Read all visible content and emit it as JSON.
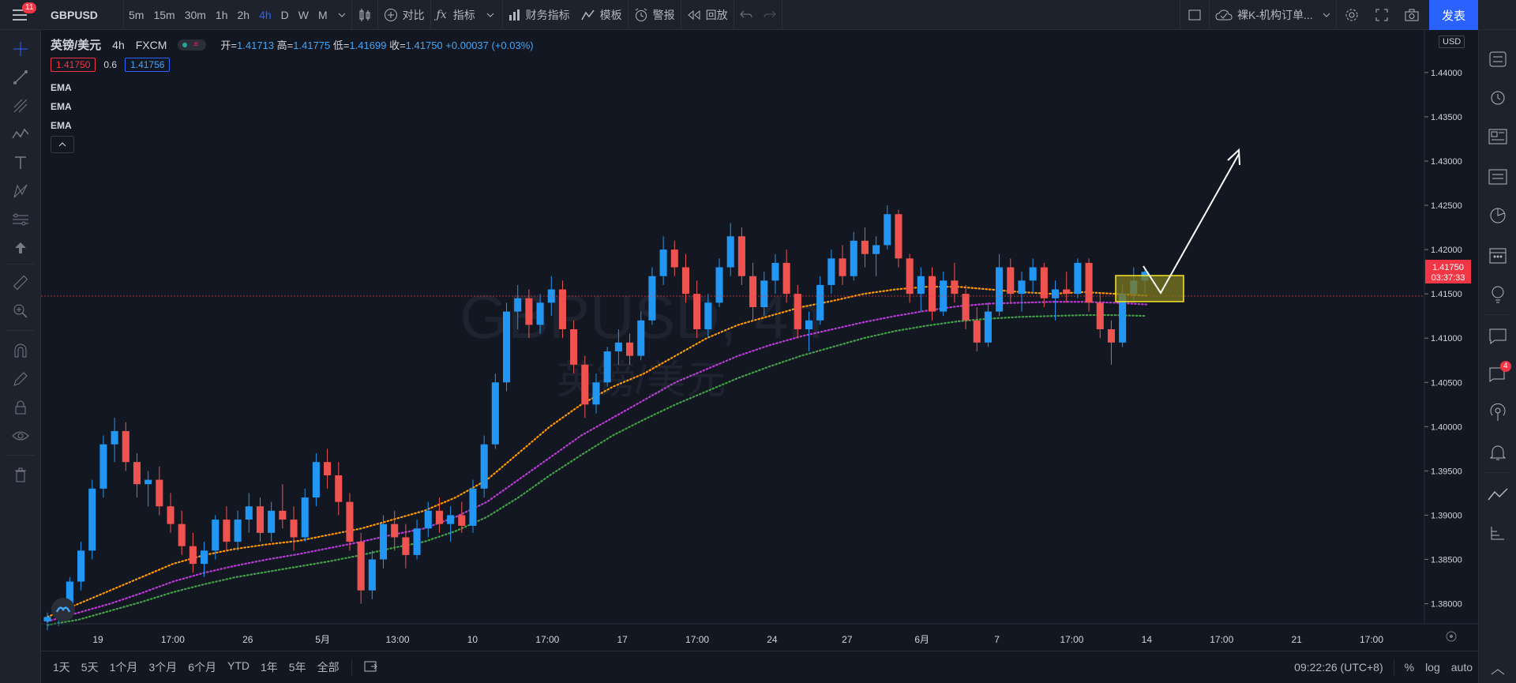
{
  "topbar": {
    "menu_badge": "11",
    "symbol": "GBPUSD",
    "intervals": [
      "5m",
      "15m",
      "30m",
      "1h",
      "2h",
      "4h",
      "D",
      "W",
      "M"
    ],
    "active_interval": "4h",
    "compare": "对比",
    "indicators": "指标",
    "financials": "财务指标",
    "templates": "模板",
    "alert": "警报",
    "replay": "回放",
    "layout_name": "裸K-机构订单...",
    "publish": "发表"
  },
  "legend": {
    "symbol_name": "英镑/美元",
    "interval": "4h",
    "exchange": "FXCM",
    "open_label": "开=",
    "open": "1.41713",
    "high_label": "高=",
    "high": "1.41775",
    "low_label": "低=",
    "low": "1.41699",
    "close_label": "收=",
    "close": "1.41750",
    "change": "+0.00037 (+0.03%)",
    "bid": "1.41750",
    "spread": "0.6",
    "ask": "1.41756",
    "indicators": [
      "EMA",
      "EMA",
      "EMA"
    ]
  },
  "watermark": {
    "symbol": "GBPUSD, 4h",
    "name": "英镑/美元"
  },
  "price_axis": {
    "currency": "USD",
    "labels": [
      "1.44000",
      "1.43500",
      "1.43000",
      "1.42500",
      "1.42000",
      "1.41500",
      "1.41000",
      "1.40500",
      "1.40000",
      "1.39500",
      "1.39000",
      "1.38500",
      "1.38000"
    ],
    "current_price": "1.41750",
    "countdown": "03:37:33"
  },
  "time_axis": {
    "labels": [
      "19",
      "17:00",
      "26",
      "5月",
      "13:00",
      "10",
      "17:00",
      "17",
      "17:00",
      "24",
      "27",
      "6月",
      "7",
      "17:00",
      "14",
      "17:00",
      "21",
      "17:00"
    ]
  },
  "bottombar": {
    "ranges": [
      "1天",
      "5天",
      "1个月",
      "3个月",
      "6个月",
      "YTD",
      "1年",
      "5年",
      "全部"
    ],
    "clock": "09:22:26 (UTC+8)",
    "percent": "%",
    "log": "log",
    "auto": "auto"
  },
  "right_panel": {
    "notifications_badge": "4"
  },
  "colors": {
    "bg": "#131722",
    "up": "#2196f3",
    "down": "#ef5350",
    "ema_fast": "#ff9800",
    "ema_mid": "#ba3bd6",
    "ema_slow": "#43a047",
    "zone_fill": "#7c7a1e",
    "zone_border": "#f5e626",
    "price_label_bg": "#f23645"
  },
  "chart_data": {
    "type": "candlestick",
    "y_range": [
      1.378,
      1.444
    ],
    "candles": [
      [
        1.378,
        1.379,
        1.377,
        1.3785
      ],
      [
        1.3785,
        1.38,
        1.3775,
        1.3795
      ],
      [
        1.3795,
        1.383,
        1.379,
        1.3825
      ],
      [
        1.3825,
        1.387,
        1.3815,
        1.386
      ],
      [
        1.386,
        1.394,
        1.385,
        1.393
      ],
      [
        1.393,
        1.399,
        1.392,
        1.398
      ],
      [
        1.398,
        1.401,
        1.396,
        1.3995
      ],
      [
        1.3995,
        1.4005,
        1.395,
        1.396
      ],
      [
        1.396,
        1.397,
        1.392,
        1.3935
      ],
      [
        1.3935,
        1.395,
        1.391,
        1.394
      ],
      [
        1.394,
        1.3955,
        1.39,
        1.391
      ],
      [
        1.391,
        1.3925,
        1.388,
        1.389
      ],
      [
        1.389,
        1.3905,
        1.3855,
        1.3865
      ],
      [
        1.3865,
        1.388,
        1.3835,
        1.3845
      ],
      [
        1.3845,
        1.387,
        1.383,
        1.386
      ],
      [
        1.386,
        1.39,
        1.385,
        1.3895
      ],
      [
        1.3895,
        1.391,
        1.386,
        1.387
      ],
      [
        1.387,
        1.3905,
        1.386,
        1.3895
      ],
      [
        1.3895,
        1.3925,
        1.388,
        1.391
      ],
      [
        1.391,
        1.392,
        1.387,
        1.388
      ],
      [
        1.388,
        1.3915,
        1.387,
        1.3905
      ],
      [
        1.3905,
        1.3935,
        1.3885,
        1.3895
      ],
      [
        1.3895,
        1.391,
        1.386,
        1.3875
      ],
      [
        1.3875,
        1.393,
        1.387,
        1.392
      ],
      [
        1.392,
        1.397,
        1.391,
        1.396
      ],
      [
        1.396,
        1.3975,
        1.393,
        1.3945
      ],
      [
        1.3945,
        1.396,
        1.39,
        1.3915
      ],
      [
        1.3915,
        1.3925,
        1.386,
        1.387
      ],
      [
        1.387,
        1.388,
        1.38,
        1.3815
      ],
      [
        1.3815,
        1.386,
        1.3805,
        1.385
      ],
      [
        1.385,
        1.39,
        1.384,
        1.389
      ],
      [
        1.389,
        1.3905,
        1.386,
        1.3875
      ],
      [
        1.3875,
        1.389,
        1.384,
        1.3855
      ],
      [
        1.3855,
        1.3895,
        1.385,
        1.3885
      ],
      [
        1.3885,
        1.3915,
        1.3875,
        1.3905
      ],
      [
        1.3905,
        1.392,
        1.388,
        1.389
      ],
      [
        1.389,
        1.391,
        1.387,
        1.39
      ],
      [
        1.39,
        1.3915,
        1.388,
        1.3888
      ],
      [
        1.3888,
        1.394,
        1.388,
        1.393
      ],
      [
        1.393,
        1.399,
        1.392,
        1.398
      ],
      [
        1.398,
        1.406,
        1.3975,
        1.405
      ],
      [
        1.405,
        1.414,
        1.404,
        1.413
      ],
      [
        1.413,
        1.416,
        1.411,
        1.4145
      ],
      [
        1.4145,
        1.4155,
        1.41,
        1.4115
      ],
      [
        1.4115,
        1.415,
        1.4105,
        1.414
      ],
      [
        1.414,
        1.417,
        1.4125,
        1.4155
      ],
      [
        1.4155,
        1.4165,
        1.41,
        1.411
      ],
      [
        1.411,
        1.412,
        1.406,
        1.407
      ],
      [
        1.407,
        1.408,
        1.401,
        1.4025
      ],
      [
        1.4025,
        1.406,
        1.4015,
        1.405
      ],
      [
        1.405,
        1.409,
        1.4045,
        1.4085
      ],
      [
        1.4085,
        1.411,
        1.407,
        1.4095
      ],
      [
        1.4095,
        1.4105,
        1.407,
        1.408
      ],
      [
        1.408,
        1.413,
        1.4075,
        1.412
      ],
      [
        1.412,
        1.418,
        1.4115,
        1.417
      ],
      [
        1.417,
        1.4215,
        1.416,
        1.42
      ],
      [
        1.42,
        1.421,
        1.417,
        1.418
      ],
      [
        1.418,
        1.4195,
        1.414,
        1.415
      ],
      [
        1.415,
        1.4165,
        1.41,
        1.411
      ],
      [
        1.411,
        1.415,
        1.41,
        1.414
      ],
      [
        1.414,
        1.419,
        1.4135,
        1.418
      ],
      [
        1.418,
        1.423,
        1.417,
        1.4215
      ],
      [
        1.4215,
        1.4225,
        1.416,
        1.417
      ],
      [
        1.417,
        1.4185,
        1.412,
        1.4135
      ],
      [
        1.4135,
        1.4175,
        1.4125,
        1.4165
      ],
      [
        1.4165,
        1.4195,
        1.415,
        1.4185
      ],
      [
        1.4185,
        1.42,
        1.414,
        1.415
      ],
      [
        1.415,
        1.416,
        1.41,
        1.411
      ],
      [
        1.411,
        1.413,
        1.4085,
        1.412
      ],
      [
        1.412,
        1.417,
        1.4115,
        1.416
      ],
      [
        1.416,
        1.42,
        1.415,
        1.419
      ],
      [
        1.419,
        1.4205,
        1.416,
        1.417
      ],
      [
        1.417,
        1.422,
        1.4165,
        1.421
      ],
      [
        1.421,
        1.4225,
        1.418,
        1.4195
      ],
      [
        1.4195,
        1.4215,
        1.417,
        1.4205
      ],
      [
        1.4205,
        1.425,
        1.42,
        1.424
      ],
      [
        1.424,
        1.4245,
        1.418,
        1.419
      ],
      [
        1.419,
        1.4195,
        1.414,
        1.415
      ],
      [
        1.415,
        1.418,
        1.413,
        1.417
      ],
      [
        1.417,
        1.418,
        1.412,
        1.413
      ],
      [
        1.413,
        1.4175,
        1.4125,
        1.4165
      ],
      [
        1.4165,
        1.4185,
        1.414,
        1.415
      ],
      [
        1.415,
        1.416,
        1.411,
        1.412
      ],
      [
        1.412,
        1.4135,
        1.4085,
        1.4095
      ],
      [
        1.4095,
        1.414,
        1.409,
        1.413
      ],
      [
        1.413,
        1.4195,
        1.4125,
        1.418
      ],
      [
        1.418,
        1.419,
        1.414,
        1.415
      ],
      [
        1.415,
        1.4175,
        1.413,
        1.4165
      ],
      [
        1.4165,
        1.419,
        1.415,
        1.418
      ],
      [
        1.418,
        1.4185,
        1.4135,
        1.4145
      ],
      [
        1.4145,
        1.4165,
        1.412,
        1.4155
      ],
      [
        1.4155,
        1.4175,
        1.414,
        1.415
      ],
      [
        1.415,
        1.419,
        1.4145,
        1.4185
      ],
      [
        1.4185,
        1.419,
        1.413,
        1.414
      ],
      [
        1.414,
        1.415,
        1.41,
        1.411
      ],
      [
        1.411,
        1.412,
        1.407,
        1.4095
      ],
      [
        1.4095,
        1.416,
        1.409,
        1.415
      ],
      [
        1.415,
        1.418,
        1.414,
        1.4165
      ],
      [
        1.4165,
        1.4178,
        1.415,
        1.4175
      ]
    ],
    "ema_fast": [
      1.3785,
      1.38,
      1.3815,
      1.383,
      1.3845,
      1.3855,
      1.3862,
      1.3867,
      1.3871,
      1.3878,
      1.3885,
      1.3895,
      1.3905,
      1.392,
      1.394,
      1.397,
      1.4,
      1.4025,
      1.4045,
      1.406,
      1.408,
      1.41,
      1.4115,
      1.4125,
      1.4135,
      1.4142,
      1.415,
      1.4155,
      1.4158,
      1.4158,
      1.4155,
      1.4152,
      1.415,
      1.4152,
      1.415,
      1.4148
    ],
    "ema_mid": [
      1.378,
      1.379,
      1.38,
      1.3812,
      1.3825,
      1.3835,
      1.3843,
      1.385,
      1.3856,
      1.3863,
      1.387,
      1.3878,
      1.3885,
      1.3898,
      1.3915,
      1.394,
      1.3965,
      1.399,
      1.401,
      1.403,
      1.405,
      1.4065,
      1.408,
      1.4092,
      1.4102,
      1.411,
      1.4118,
      1.4125,
      1.4131,
      1.4136,
      1.4139,
      1.414,
      1.4141,
      1.4141,
      1.414,
      1.4138
    ],
    "ema_slow": [
      1.3776,
      1.3782,
      1.3792,
      1.3802,
      1.3813,
      1.3822,
      1.383,
      1.3836,
      1.3842,
      1.3848,
      1.3855,
      1.3863,
      1.387,
      1.3882,
      1.3898,
      1.392,
      1.3945,
      1.3968,
      1.399,
      1.4008,
      1.4025,
      1.404,
      1.4055,
      1.4068,
      1.408,
      1.409,
      1.41,
      1.4108,
      1.4114,
      1.4119,
      1.4122,
      1.4124,
      1.4125,
      1.4126,
      1.4126,
      1.4125
    ]
  }
}
